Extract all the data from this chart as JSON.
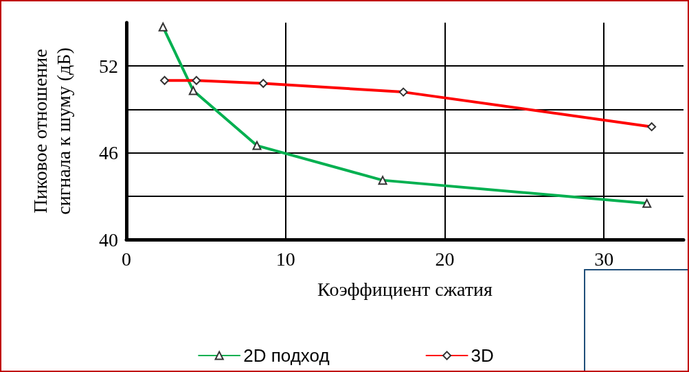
{
  "chart_data": {
    "type": "line",
    "xlabel": "Коэффициент сжатия",
    "ylabel": "Пиковое отношение\nсигнала к шуму (дБ)",
    "xlim": [
      0,
      35
    ],
    "xticks": [
      0,
      10,
      20,
      30
    ],
    "ylim": [
      40,
      55
    ],
    "yticks": [
      40,
      {
        "value": 43,
        "label": null
      },
      46,
      {
        "value": 49,
        "label": null
      },
      52
    ],
    "grid": true,
    "legend": "bottom",
    "series": [
      {
        "name": "2D подход",
        "color": "#00b050",
        "marker": "triangle",
        "x": [
          2.3,
          4.2,
          8.2,
          16.1,
          32.7
        ],
        "values": [
          54.7,
          50.3,
          46.5,
          44.1,
          42.5
        ]
      },
      {
        "name": "3D",
        "color": "#ff0000",
        "marker": "diamond",
        "x": [
          2.4,
          4.4,
          8.6,
          17.4,
          33.0
        ],
        "values": [
          51.0,
          51.0,
          50.8,
          50.2,
          47.8
        ]
      }
    ]
  }
}
